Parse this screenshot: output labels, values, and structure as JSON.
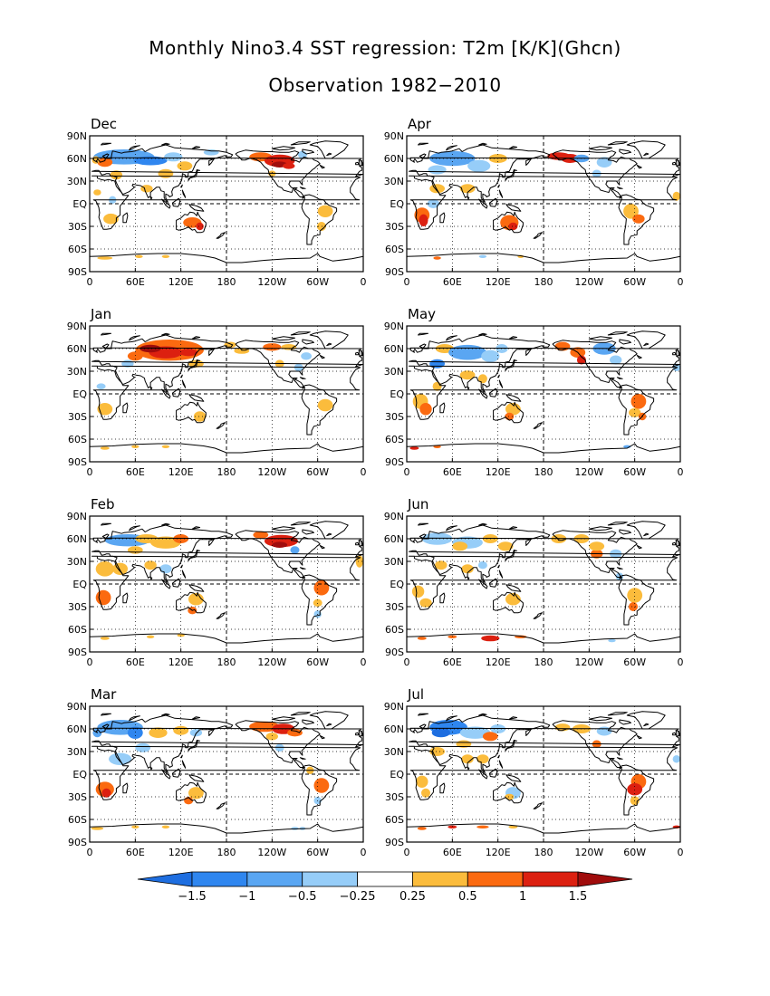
{
  "title_line1": "Monthly Nino3.4 SST regression: T2m [K/K](Ghcn)",
  "title_line2": "Observation 1982−2010",
  "chart_data": {
    "type": "heatmap",
    "variable": "T2m",
    "units": "K/K",
    "dataset": "Ghcn",
    "period": "1982−2010",
    "panels": [
      {
        "name": "Dec",
        "position": "left column, row 1"
      },
      {
        "name": "Apr",
        "position": "right column, row 1"
      },
      {
        "name": "Jan",
        "position": "left column, row 2"
      },
      {
        "name": "May",
        "position": "right column, row 2"
      },
      {
        "name": "Feb",
        "position": "left column, row 3"
      },
      {
        "name": "Jun",
        "position": "right column, row 3"
      },
      {
        "name": "Mar",
        "position": "left column, row 4"
      },
      {
        "name": "Jul",
        "position": "right column, row 4"
      }
    ],
    "x_ticks": [
      "0",
      "60E",
      "120E",
      "180",
      "120W",
      "60W",
      "0"
    ],
    "y_ticks": [
      "90N",
      "60N",
      "30N",
      "EQ",
      "30S",
      "60S",
      "90S"
    ],
    "xlim": [
      0,
      360
    ],
    "ylim": [
      -90,
      90
    ],
    "grid": true,
    "colorbar": {
      "placement": "bottom",
      "levels": [
        -1.5,
        -1,
        -0.5,
        -0.25,
        0.25,
        0.5,
        1,
        1.5
      ],
      "labels": [
        "−1.5",
        "−1",
        "−0.5",
        "−0.25",
        "0.25",
        "0.5",
        "1",
        "1.5"
      ],
      "colors": [
        "#1e6ee0",
        "#2f86ef",
        "#5aa6f2",
        "#96cdf8",
        "#ffffff",
        "#fbbc3c",
        "#fb6a10",
        "#dc2010",
        "#a00c0c"
      ]
    }
  }
}
